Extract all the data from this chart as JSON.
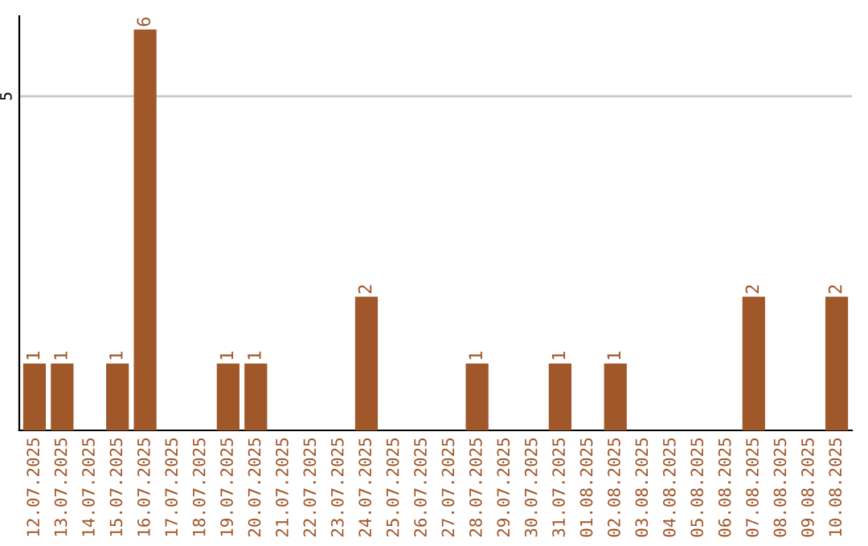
{
  "chart_data": {
    "type": "bar",
    "categories": [
      "12.07.2025",
      "13.07.2025",
      "14.07.2025",
      "15.07.2025",
      "16.07.2025",
      "17.07.2025",
      "18.07.2025",
      "19.07.2025",
      "20.07.2025",
      "21.07.2025",
      "22.07.2025",
      "23.07.2025",
      "24.07.2025",
      "25.07.2025",
      "26.07.2025",
      "27.07.2025",
      "28.07.2025",
      "29.07.2025",
      "30.07.2025",
      "31.07.2025",
      "01.08.2025",
      "02.08.2025",
      "03.08.2025",
      "04.08.2025",
      "05.08.2025",
      "06.08.2025",
      "07.08.2025",
      "08.08.2025",
      "09.08.2025",
      "10.08.2025"
    ],
    "values": [
      1,
      1,
      0,
      1,
      6,
      0,
      0,
      1,
      1,
      0,
      0,
      0,
      2,
      0,
      0,
      0,
      1,
      0,
      0,
      1,
      0,
      1,
      0,
      0,
      0,
      0,
      2,
      0,
      0,
      2
    ],
    "value_labels": [
      "1",
      "1",
      null,
      "1",
      "6",
      null,
      null,
      "1",
      "1",
      null,
      null,
      null,
      "2",
      null,
      null,
      null,
      "1",
      null,
      null,
      "1",
      null,
      "1",
      null,
      null,
      null,
      null,
      "2",
      null,
      null,
      "2"
    ],
    "color": "#a0572a",
    "ylim": [
      0,
      6.2
    ],
    "yticks": [
      5
    ],
    "grid": "y",
    "legend": false
  }
}
